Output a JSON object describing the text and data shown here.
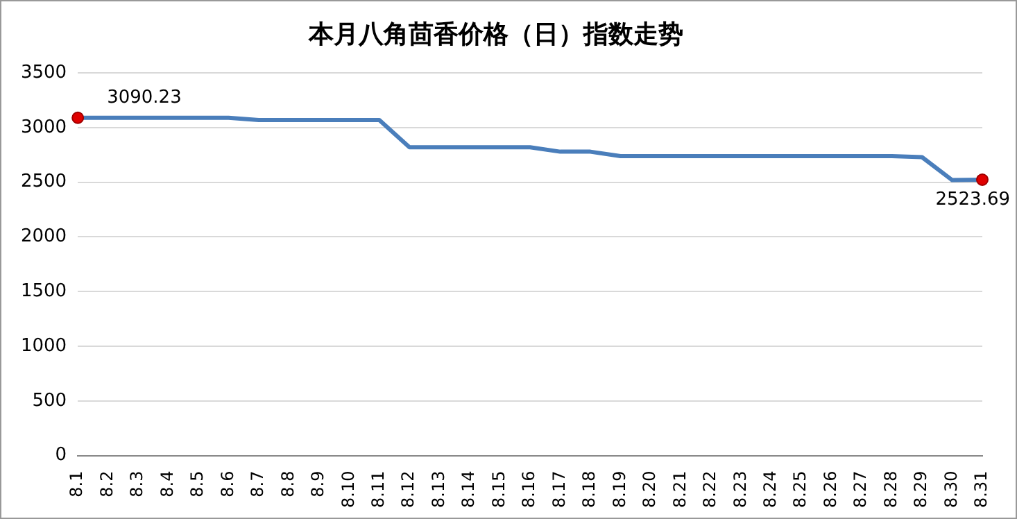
{
  "chart_data": {
    "type": "line",
    "title": "本月八角茴香价格（日）指数走势",
    "categories": [
      "8.1",
      "8.2",
      "8.3",
      "8.4",
      "8.5",
      "8.6",
      "8.7",
      "8.8",
      "8.9",
      "8.10",
      "8.11",
      "8.12",
      "8.13",
      "8.14",
      "8.15",
      "8.16",
      "8.17",
      "8.18",
      "8.19",
      "8.20",
      "8.21",
      "8.22",
      "8.23",
      "8.24",
      "8.25",
      "8.26",
      "8.27",
      "8.28",
      "8.29",
      "8.30",
      "8.31"
    ],
    "series": [
      {
        "color": "#4a7ebb",
        "values": [
          3090.23,
          3090,
          3090,
          3090,
          3090,
          3090,
          3070,
          3070,
          3070,
          3070,
          3070,
          2820,
          2820,
          2820,
          2820,
          2820,
          2780,
          2780,
          2740,
          2740,
          2740,
          2740,
          2740,
          2740,
          2740,
          2740,
          2740,
          2740,
          2730,
          2520,
          2523.69
        ],
        "value_labels": [
          "3090.23",
          null,
          null,
          null,
          null,
          null,
          null,
          null,
          null,
          null,
          null,
          null,
          null,
          null,
          null,
          null,
          null,
          null,
          null,
          null,
          null,
          null,
          null,
          null,
          null,
          null,
          null,
          null,
          null,
          null,
          "2523.69"
        ]
      }
    ],
    "ylim": [
      0,
      3500
    ],
    "yticks": [
      0,
      500,
      1000,
      1500,
      2000,
      2500,
      3000,
      3500
    ],
    "grid": "y",
    "legend": false,
    "marker": "none",
    "line_style": "solid"
  }
}
